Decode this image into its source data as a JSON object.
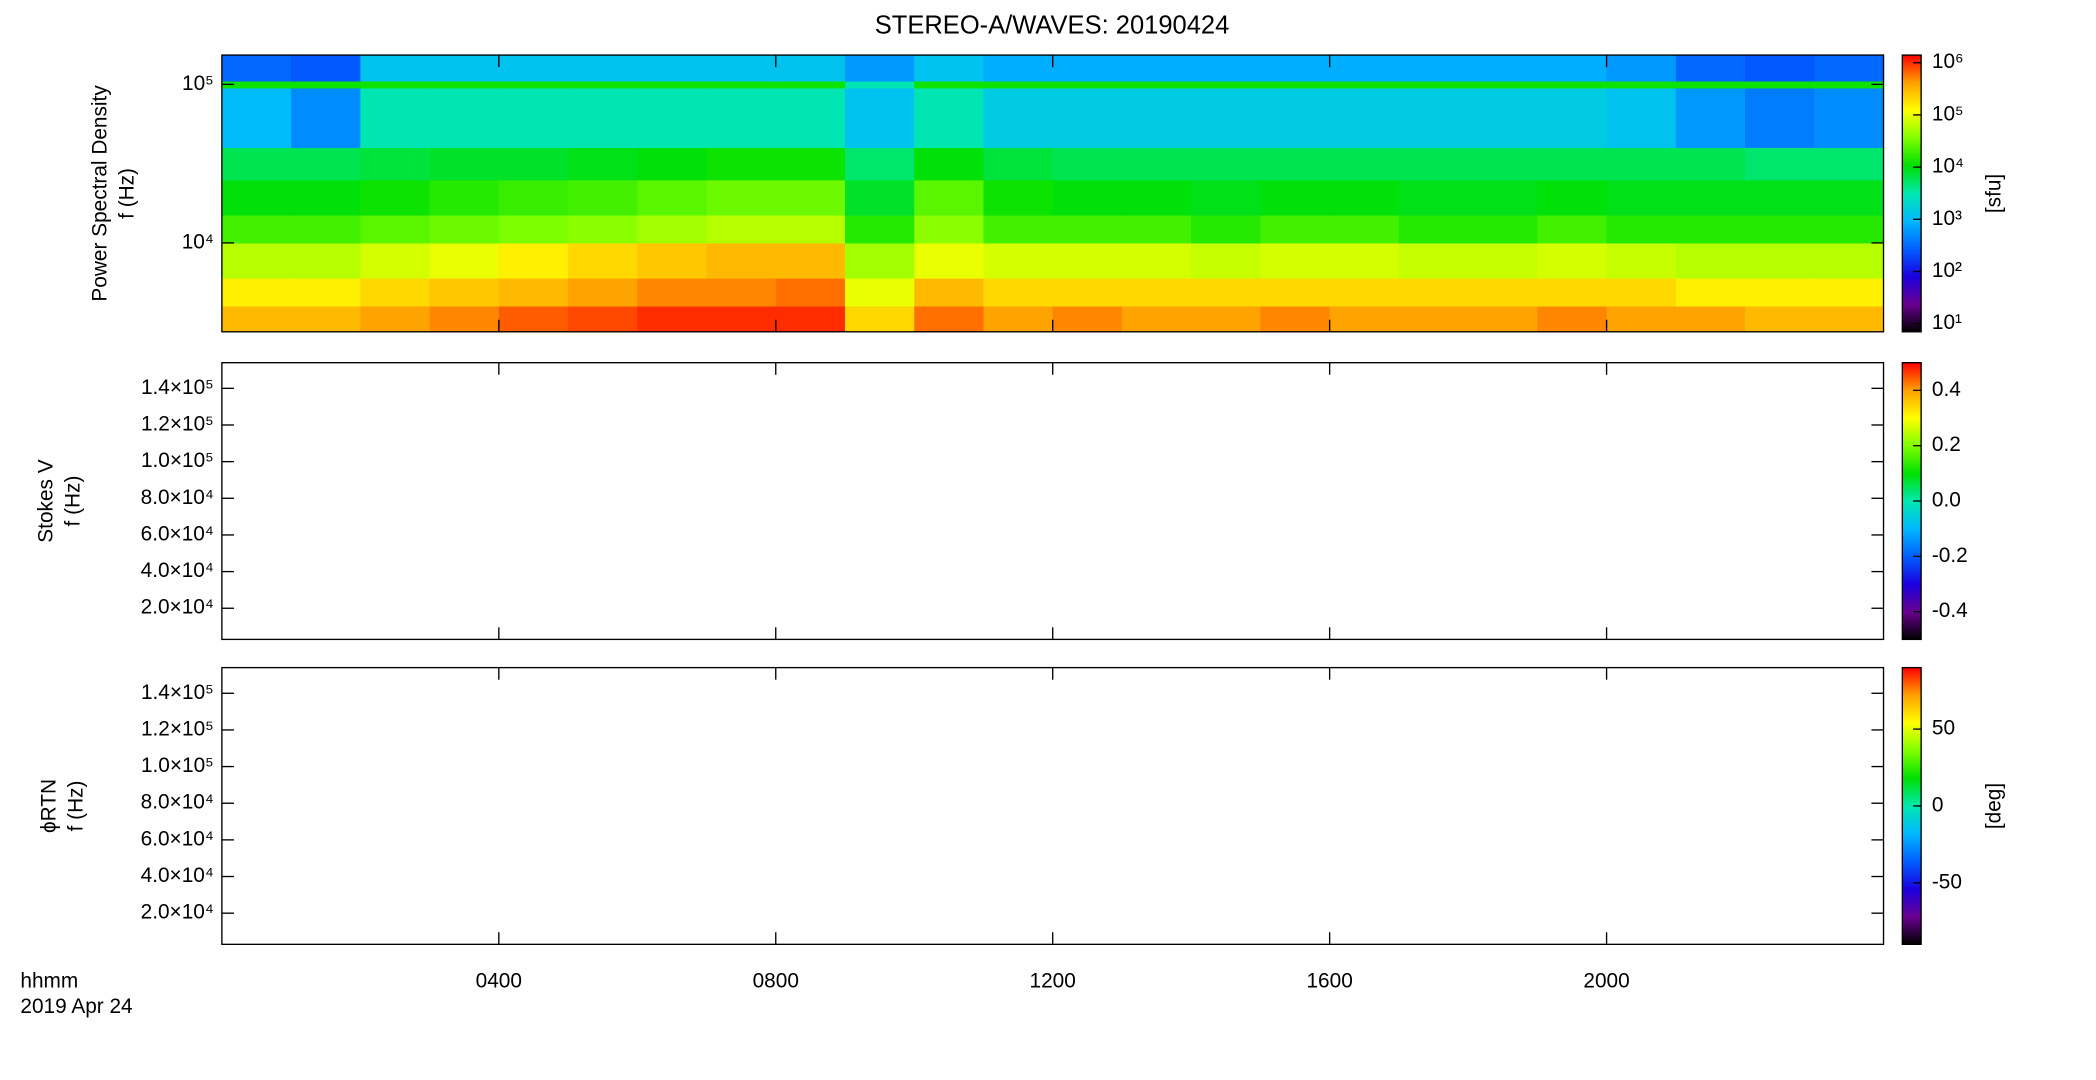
{
  "chart_data": [
    {
      "type": "heatmap",
      "title": "STEREO-A/WAVES: 20190424",
      "y_label": [
        "Power Spectral Density",
        "f (Hz)"
      ],
      "z_label": "[sfu]",
      "xlim": [
        0,
        24
      ],
      "ylim": [
        2750,
        153000
      ],
      "ylog": true,
      "yticks": [
        {
          "value": 10000,
          "label": "10⁴"
        },
        {
          "value": 100000,
          "label": "10⁵"
        }
      ],
      "zlim": [
        7,
        1400000
      ],
      "zlog": true,
      "zticks": [
        {
          "value": 10,
          "label": "10¹"
        },
        {
          "value": 100,
          "label": "10²"
        },
        {
          "value": 1000,
          "label": "10³"
        },
        {
          "value": 10000,
          "label": "10⁴"
        },
        {
          "value": 100000,
          "label": "10⁵"
        },
        {
          "value": 1000000,
          "label": "10⁶"
        }
      ],
      "colormap": [
        "#000000",
        "#6a0090",
        "#1a00e0",
        "#0060ff",
        "#00b8ff",
        "#00e8b0",
        "#00e000",
        "#80ff00",
        "#ffff00",
        "#ffa000",
        "#ff0000"
      ],
      "x_bins": [
        0,
        1,
        2,
        3,
        4,
        5,
        6,
        7,
        8,
        9,
        10,
        11,
        12,
        13,
        14,
        15,
        16,
        17,
        18,
        19,
        20,
        21,
        22,
        23,
        24
      ],
      "y_bins": [
        2750,
        4000,
        6000,
        10000,
        15000,
        25000,
        40000,
        95000,
        105000,
        153000
      ],
      "z": [
        [
          300000.0,
          300000.0,
          400000.0,
          500000.0,
          700000.0,
          800000.0,
          1000000.0,
          1000000.0,
          1000000.0,
          200000.0,
          600000.0,
          400000.0,
          500000.0,
          400000.0,
          400000.0,
          500000.0,
          400000.0,
          400000.0,
          400000.0,
          500000.0,
          400000.0,
          400000.0,
          300000.0,
          300000.0
        ],
        [
          150000.0,
          150000.0,
          200000.0,
          250000.0,
          300000.0,
          400000.0,
          500000.0,
          500000.0,
          600000.0,
          100000.0,
          300000.0,
          200000.0,
          200000.0,
          200000.0,
          200000.0,
          200000.0,
          200000.0,
          200000.0,
          200000.0,
          200000.0,
          200000.0,
          150000.0,
          150000.0,
          150000.0
        ],
        [
          60000.0,
          60000.0,
          80000.0,
          100000.0,
          150000.0,
          200000.0,
          250000.0,
          300000.0,
          300000.0,
          50000.0,
          100000.0,
          80000.0,
          80000.0,
          80000.0,
          70000.0,
          80000.0,
          80000.0,
          70000.0,
          70000.0,
          80000.0,
          70000.0,
          60000.0,
          60000.0,
          60000.0
        ],
        [
          20000.0,
          20000.0,
          25000.0,
          30000.0,
          35000.0,
          40000.0,
          50000.0,
          60000.0,
          60000.0,
          15000.0,
          40000.0,
          20000.0,
          20000.0,
          20000.0,
          15000.0,
          20000.0,
          20000.0,
          15000.0,
          15000.0,
          20000.0,
          15000.0,
          15000.0,
          15000.0,
          15000.0
        ],
        [
          10000.0,
          10000.0,
          12000.0,
          15000.0,
          18000.0,
          20000.0,
          25000.0,
          30000.0,
          30000.0,
          8000.0,
          25000.0,
          12000.0,
          10000.0,
          10000.0,
          9000.0,
          10000.0,
          10000.0,
          9000.0,
          9000.0,
          10000.0,
          9000.0,
          9000.0,
          9000.0,
          9000.0
        ],
        [
          6000.0,
          6000.0,
          7000.0,
          8000.0,
          8000.0,
          9000.0,
          10000.0,
          12000.0,
          12000.0,
          5000.0,
          10000.0,
          7000.0,
          6000.0,
          6000.0,
          6000.0,
          6000.0,
          6000.0,
          6000.0,
          6000.0,
          6000.0,
          6000.0,
          6000.0,
          5000.0,
          5000.0
        ],
        [
          1000,
          500,
          3000,
          3000,
          3000,
          3000,
          3000,
          3000,
          3000,
          1200,
          3000,
          1500,
          1500,
          1500,
          1500,
          1500,
          1500,
          1500,
          1500,
          1500,
          1200,
          600,
          400,
          500
        ],
        [
          12000.0,
          12000.0,
          12000.0,
          12000.0,
          12000.0,
          12000.0,
          12000.0,
          12000.0,
          12000.0,
          3000,
          12000.0,
          12000.0,
          12000.0,
          12000.0,
          12000.0,
          12000.0,
          12000.0,
          12000.0,
          12000.0,
          12000.0,
          12000.0,
          12000.0,
          12000.0,
          12000.0
        ],
        [
          300,
          250,
          1200,
          1200,
          1200,
          1200,
          1200,
          1200,
          1200,
          600,
          1200,
          800,
          800,
          800,
          800,
          800,
          800,
          800,
          800,
          800,
          600,
          300,
          250,
          300
        ]
      ]
    },
    {
      "type": "heatmap",
      "y_label": [
        "Stokes V",
        "f (Hz)"
      ],
      "xlim": [
        0,
        24
      ],
      "ylim": [
        3000,
        154000
      ],
      "yticks": [
        {
          "value": 20000,
          "label": "2.0×10⁴"
        },
        {
          "value": 40000,
          "label": "4.0×10⁴"
        },
        {
          "value": 60000,
          "label": "6.0×10⁴"
        },
        {
          "value": 80000,
          "label": "8.0×10⁴"
        },
        {
          "value": 100000,
          "label": "1.0×10⁵"
        },
        {
          "value": 120000,
          "label": "1.2×10⁵"
        },
        {
          "value": 140000,
          "label": "1.4×10⁵"
        }
      ],
      "zlim": [
        -0.5,
        0.5
      ],
      "zticks": [
        -0.4,
        -0.2,
        {
          "value": 0,
          "label": "0.0"
        },
        0.2,
        0.4
      ],
      "colormap": [
        "#000000",
        "#6a0090",
        "#1a00e0",
        "#0060ff",
        "#00b8ff",
        "#00e8b0",
        "#00e000",
        "#80ff00",
        "#ffff00",
        "#ffa000",
        "#ff0000"
      ]
    },
    {
      "type": "heatmap",
      "y_label": [
        "ϕRTN",
        "f (Hz)"
      ],
      "z_label": "[deg]",
      "x_label": [
        "hhmm",
        "2019 Apr 24"
      ],
      "xlim": [
        0,
        24
      ],
      "xticks": [
        {
          "value": 4,
          "label": "0400"
        },
        {
          "value": 8,
          "label": "0800"
        },
        {
          "value": 12,
          "label": "1200"
        },
        {
          "value": 16,
          "label": "1600"
        },
        {
          "value": 20,
          "label": "2000"
        }
      ],
      "ylim": [
        3000,
        154000
      ],
      "yticks": [
        {
          "value": 20000,
          "label": "2.0×10⁴"
        },
        {
          "value": 40000,
          "label": "4.0×10⁴"
        },
        {
          "value": 60000,
          "label": "6.0×10⁴"
        },
        {
          "value": 80000,
          "label": "8.0×10⁴"
        },
        {
          "value": 100000,
          "label": "1.0×10⁵"
        },
        {
          "value": 120000,
          "label": "1.2×10⁵"
        },
        {
          "value": 140000,
          "label": "1.4×10⁵"
        }
      ],
      "zlim": [
        -90,
        90
      ],
      "zticks": [
        -50,
        0,
        50
      ],
      "colormap": [
        "#000000",
        "#6a0090",
        "#1a00e0",
        "#0060ff",
        "#00b8ff",
        "#00e8b0",
        "#00e000",
        "#80ff00",
        "#ffff00",
        "#ffa000",
        "#ff0000"
      ]
    }
  ]
}
